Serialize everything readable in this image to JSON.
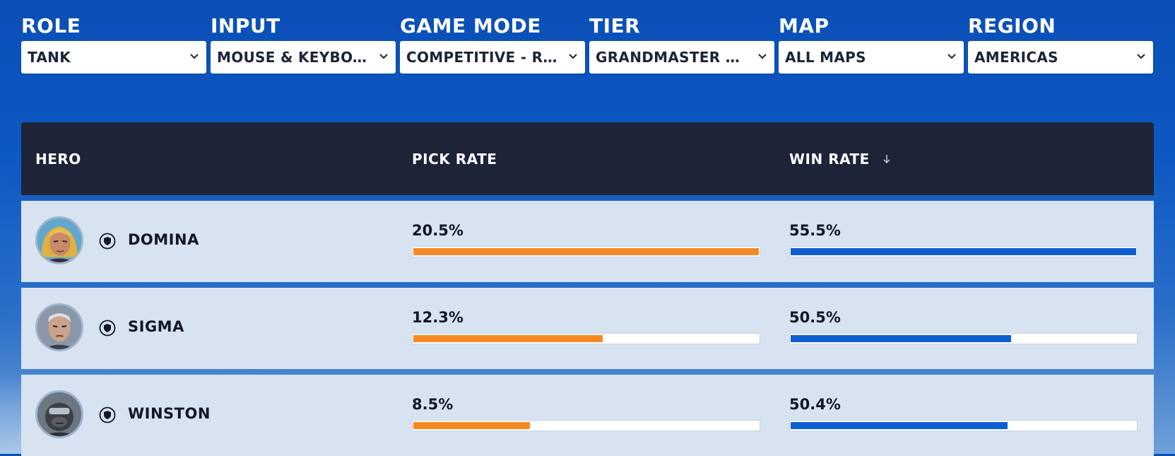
{
  "filters": [
    {
      "label": "ROLE",
      "value": "TANK"
    },
    {
      "label": "INPUT",
      "value": "MOUSE & KEYBOARD"
    },
    {
      "label": "GAME MODE",
      "value": "COMPETITIVE - ROL..."
    },
    {
      "label": "TIER",
      "value": "GRANDMASTER AN..."
    },
    {
      "label": "MAP",
      "value": "ALL MAPS"
    },
    {
      "label": "REGION",
      "value": "AMERICAS"
    }
  ],
  "table": {
    "headers": {
      "hero": "HERO",
      "pick_rate": "PICK RATE",
      "win_rate": "WIN RATE"
    },
    "sort_column": "win_rate",
    "sort_direction": "descending",
    "rows": [
      {
        "hero": "DOMINA",
        "role_icon": "tank-shield-icon",
        "pick_rate": "20.5%",
        "win_rate": "55.5%",
        "pick_fill": 1.0,
        "win_fill": 1.0
      },
      {
        "hero": "SIGMA",
        "role_icon": "tank-shield-icon",
        "pick_rate": "12.3%",
        "win_rate": "50.5%",
        "pick_fill": 0.55,
        "win_fill": 0.64
      },
      {
        "hero": "WINSTON",
        "role_icon": "tank-shield-icon",
        "pick_rate": "8.5%",
        "win_rate": "50.4%",
        "pick_fill": 0.34,
        "win_fill": 0.63
      }
    ]
  },
  "colors": {
    "pick_bar": "#f58a25",
    "win_bar": "#0d5fd1",
    "header_bg": "#1d2438",
    "row_bg": "#d7e3f1"
  }
}
